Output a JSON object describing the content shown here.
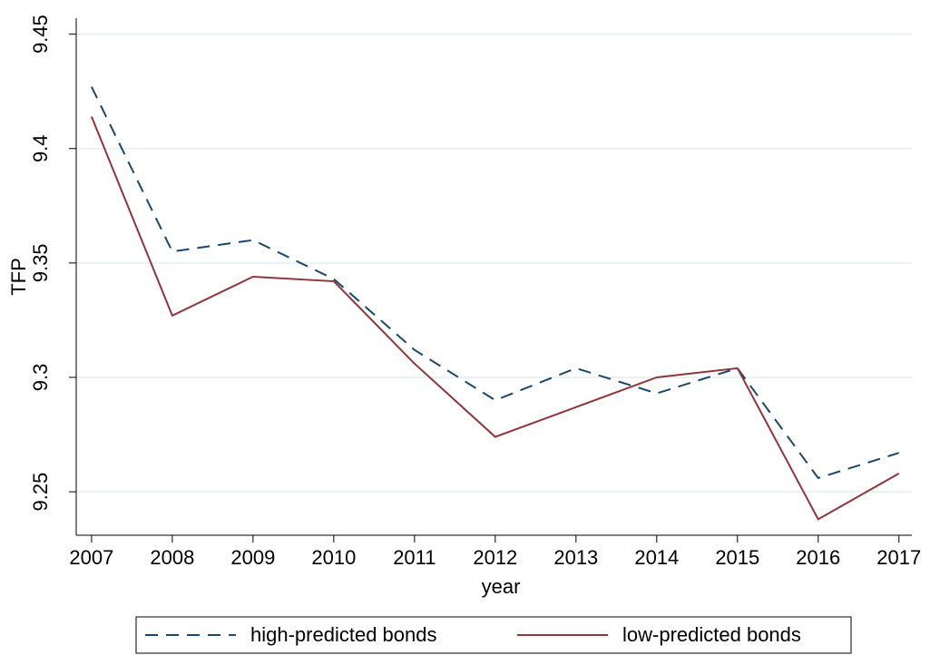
{
  "chart_data": {
    "type": "line",
    "x_label": "year",
    "y_label": "TFP",
    "x": [
      2007,
      2008,
      2009,
      2010,
      2011,
      2012,
      2013,
      2014,
      2015,
      2016,
      2017
    ],
    "series": [
      {
        "name": "high-predicted bonds",
        "color": "#1a476f",
        "style": "dashed",
        "values": [
          9.427,
          9.355,
          9.36,
          9.343,
          9.312,
          9.29,
          9.304,
          9.293,
          9.304,
          9.256,
          9.267
        ]
      },
      {
        "name": "low-predicted bonds",
        "color": "#90353b",
        "style": "solid",
        "values": [
          9.414,
          9.327,
          9.344,
          9.342,
          9.306,
          9.274,
          9.287,
          9.3,
          9.304,
          9.238,
          9.258
        ]
      }
    ],
    "xlim": [
      2006.81,
      2017.16
    ],
    "xticks": [
      2007,
      2008,
      2009,
      2010,
      2011,
      2012,
      2013,
      2014,
      2015,
      2016,
      2017
    ],
    "ylim": [
      9.231,
      9.457
    ],
    "yticks": [
      9.25,
      9.3,
      9.35,
      9.4,
      9.45
    ],
    "grid": true,
    "legend": "bottom"
  }
}
